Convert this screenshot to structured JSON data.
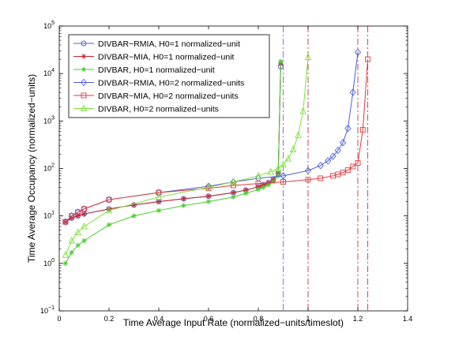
{
  "chart_data": {
    "type": "line",
    "title": "",
    "xlabel": "Time Average Input Rate (normalized−units/timeslot)",
    "ylabel": "Time Average Occupancy (normalized−units)",
    "xlim": [
      0,
      1.4
    ],
    "ylim_log10": [
      -1,
      5
    ],
    "y_scale": "log",
    "x_ticks": [
      {
        "v": 0,
        "label": "0"
      },
      {
        "v": 0.2,
        "label": "0.2"
      },
      {
        "v": 0.4,
        "label": "0.4"
      },
      {
        "v": 0.6,
        "label": "0.6"
      },
      {
        "v": 0.8,
        "label": "0.8"
      },
      {
        "v": 1.0,
        "label": "1"
      },
      {
        "v": 1.2,
        "label": "1.2"
      },
      {
        "v": 1.4,
        "label": "1.4"
      }
    ],
    "y_ticks": [
      {
        "e": -1,
        "base": "10",
        "exp": "−1"
      },
      {
        "e": 0,
        "base": "10",
        "exp": "0"
      },
      {
        "e": 1,
        "base": "10",
        "exp": "1"
      },
      {
        "e": 2,
        "base": "10",
        "exp": "2"
      },
      {
        "e": 3,
        "base": "10",
        "exp": "3"
      },
      {
        "e": 4,
        "base": "10",
        "exp": "4"
      },
      {
        "e": 5,
        "base": "10",
        "exp": "5"
      }
    ],
    "grid": false,
    "legend_position": "top-left",
    "series": [
      {
        "name": "DIVBAR−RMIA, H0=1 normalized−unit",
        "color": "#4a5fd6",
        "marker": "circle",
        "x": [
          0.025,
          0.05,
          0.075,
          0.1,
          0.2,
          0.3,
          0.4,
          0.5,
          0.6,
          0.7,
          0.75,
          0.8,
          0.82,
          0.84,
          0.86,
          0.88,
          0.89
        ],
        "y": [
          7.5,
          9,
          10,
          11,
          14,
          17,
          20,
          23,
          26,
          31,
          35,
          41,
          45,
          50,
          58,
          80,
          14000
        ]
      },
      {
        "name": "DIVBAR−MIA, H0=1 normalized−unit",
        "color": "#c0262b",
        "marker": "star",
        "x": [
          0.025,
          0.05,
          0.075,
          0.1,
          0.2,
          0.3,
          0.4,
          0.5,
          0.6,
          0.7,
          0.75,
          0.8,
          0.82,
          0.84,
          0.86,
          0.88,
          0.89
        ],
        "y": [
          7.5,
          9,
          10,
          11,
          14,
          17,
          20,
          23,
          26,
          31,
          35,
          41,
          45,
          50,
          58,
          80,
          16000
        ]
      },
      {
        "name": "DIVBAR, H0=1 normalized−unit",
        "color": "#47cc2c",
        "marker": "star",
        "x": [
          0.025,
          0.05,
          0.075,
          0.1,
          0.2,
          0.3,
          0.4,
          0.5,
          0.6,
          0.7,
          0.75,
          0.8,
          0.82,
          0.84,
          0.86,
          0.88,
          0.89
        ],
        "y": [
          1.0,
          1.7,
          2.4,
          3.0,
          6.5,
          10,
          13,
          16.5,
          20,
          25,
          30,
          36,
          40,
          45,
          52,
          70,
          18000
        ]
      },
      {
        "name": "DIVBAR−RMIA, H0=2 normalized−units",
        "color": "#4a5fd6",
        "marker": "diamond",
        "x": [
          0.025,
          0.05,
          0.075,
          0.1,
          0.2,
          0.4,
          0.6,
          0.7,
          0.8,
          0.9,
          1.0,
          1.05,
          1.08,
          1.1,
          1.12,
          1.14,
          1.16,
          1.18,
          1.2
        ],
        "y": [
          7.5,
          10,
          12,
          14,
          22,
          31,
          42,
          52,
          62,
          70,
          90,
          115,
          145,
          180,
          240,
          350,
          700,
          4000,
          28000
        ]
      },
      {
        "name": "DIVBAR−MIA, H0=2 normalized−units",
        "color": "#e03a3e",
        "marker": "square",
        "x": [
          0.025,
          0.05,
          0.075,
          0.1,
          0.2,
          0.4,
          0.6,
          0.7,
          0.8,
          0.9,
          1.0,
          1.05,
          1.1,
          1.12,
          1.14,
          1.16,
          1.18,
          1.2,
          1.22,
          1.24
        ],
        "y": [
          7.5,
          10,
          12,
          14,
          22,
          31,
          38,
          44,
          48,
          52,
          58,
          62,
          70,
          75,
          82,
          92,
          110,
          130,
          650,
          20000
        ]
      },
      {
        "name": "DIVBAR, H0=2 normalized−units",
        "color": "#7ee33d",
        "marker": "triangle",
        "x": [
          0.025,
          0.05,
          0.075,
          0.1,
          0.2,
          0.4,
          0.6,
          0.7,
          0.8,
          0.85,
          0.88,
          0.9,
          0.92,
          0.94,
          0.96,
          0.98,
          1.0
        ],
        "y": [
          1.5,
          3.0,
          4.5,
          6.0,
          13,
          25,
          40,
          52,
          70,
          85,
          100,
          120,
          160,
          250,
          500,
          1600,
          22000
        ]
      }
    ],
    "vlines": [
      {
        "x": 0.9,
        "color": "#9b59d0",
        "dash": "dashdot"
      },
      {
        "x": 1.0,
        "color": "#b83a3a",
        "dash": "dashdot"
      },
      {
        "x": 1.2,
        "color": "#b83a3a",
        "dash": "dashdot"
      },
      {
        "x": 1.24,
        "color": "#b83a3a",
        "dash": "dashdot"
      }
    ]
  }
}
